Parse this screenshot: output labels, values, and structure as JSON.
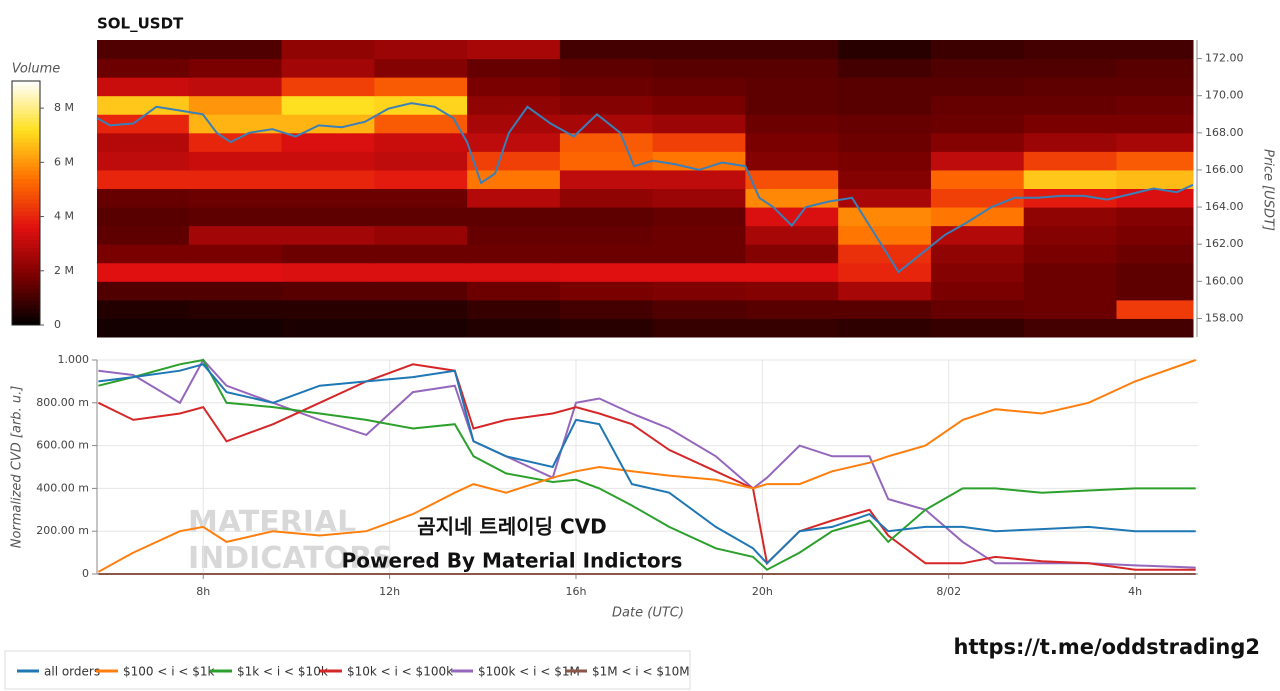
{
  "chart_data": [
    {
      "type": "heatmap",
      "title": "SOL_USDT",
      "y_label": "Price [USDT]",
      "xlim": [
        5.72,
        29.35
      ],
      "ylim": [
        157,
        173
      ],
      "yticks": [
        {
          "value": 158,
          "label": "158.00"
        },
        {
          "value": 160,
          "label": "160.00"
        },
        {
          "value": 162,
          "label": "162.00"
        },
        {
          "value": 164,
          "label": "164.00"
        },
        {
          "value": 166,
          "label": "166.00"
        },
        {
          "value": 168,
          "label": "168.00"
        },
        {
          "value": 170,
          "label": "170.00"
        },
        {
          "value": 172,
          "label": "172.00"
        }
      ],
      "x_bins": [
        5.72,
        7.7,
        9.7,
        11.7,
        13.7,
        15.7,
        17.7,
        19.7,
        21.7,
        23.7,
        25.7,
        27.7,
        29.35
      ],
      "y_bins": [
        157,
        158,
        159,
        160,
        161,
        162,
        163,
        164,
        165,
        166,
        167,
        168,
        169,
        170,
        171,
        172,
        173
      ],
      "z": [
        [
          0.3,
          0.3,
          0.4,
          0.4,
          0.5,
          0.6,
          0.8,
          0.8,
          0.7,
          0.8,
          1.0,
          1.0
        ],
        [
          0.5,
          0.6,
          0.6,
          0.6,
          0.8,
          1.0,
          1.2,
          1.3,
          1.3,
          1.5,
          1.6,
          4.4
        ],
        [
          1.2,
          1.2,
          1.3,
          1.3,
          1.6,
          1.8,
          1.9,
          2.0,
          2.6,
          1.8,
          1.6,
          1.4
        ],
        [
          3.6,
          3.6,
          3.5,
          3.5,
          3.5,
          3.6,
          3.6,
          3.6,
          4.0,
          2.0,
          1.6,
          1.4
        ],
        [
          1.8,
          1.8,
          1.6,
          1.6,
          1.6,
          1.6,
          1.6,
          2.0,
          4.2,
          2.2,
          1.8,
          1.6
        ],
        [
          1.4,
          2.5,
          2.5,
          2.3,
          1.5,
          1.5,
          1.6,
          2.6,
          5.5,
          2.8,
          2.0,
          1.8
        ],
        [
          1.3,
          1.4,
          1.4,
          1.4,
          1.4,
          1.4,
          1.5,
          3.5,
          5.8,
          5.5,
          2.2,
          2.0
        ],
        [
          1.5,
          1.6,
          1.6,
          1.6,
          2.8,
          2.2,
          2.4,
          5.8,
          2.6,
          4.5,
          3.8,
          3.5
        ],
        [
          4.0,
          4.0,
          4.0,
          3.8,
          5.5,
          3.0,
          3.0,
          4.8,
          2.0,
          5.2,
          6.8,
          6.6
        ],
        [
          3.0,
          3.2,
          3.2,
          3.0,
          4.5,
          5.2,
          5.5,
          2.0,
          1.8,
          3.0,
          4.5,
          5.0
        ],
        [
          2.8,
          4.0,
          3.5,
          3.2,
          3.0,
          5.0,
          4.5,
          1.8,
          1.6,
          2.0,
          2.4,
          2.6
        ],
        [
          4.0,
          6.5,
          6.5,
          5.0,
          2.6,
          2.6,
          2.4,
          1.6,
          1.5,
          1.6,
          1.8,
          1.8
        ],
        [
          6.8,
          6.0,
          7.2,
          7.0,
          2.2,
          2.0,
          1.8,
          1.4,
          1.3,
          1.5,
          1.5,
          1.6
        ],
        [
          3.2,
          3.0,
          4.5,
          5.0,
          1.8,
          1.6,
          1.5,
          1.4,
          1.3,
          1.3,
          1.4,
          1.4
        ],
        [
          1.6,
          1.8,
          2.5,
          2.0,
          1.5,
          1.4,
          1.3,
          1.3,
          1.0,
          1.2,
          1.2,
          1.3
        ],
        [
          1.2,
          1.2,
          2.2,
          2.4,
          2.6,
          1.0,
          1.0,
          1.0,
          0.6,
          0.9,
          1.0,
          1.0
        ]
      ],
      "colormap": [
        "#000000",
        "#7a0000",
        "#e01010",
        "#ff7000",
        "#ffe020",
        "#ffffff"
      ],
      "colorbar": {
        "label": "Volume",
        "lim": [
          0,
          9
        ],
        "ticks": [
          0,
          {
            "value": 2,
            "label": "2 M"
          },
          {
            "value": 4,
            "label": "4 M"
          },
          {
            "value": 6,
            "label": "6 M"
          },
          {
            "value": 8,
            "label": "8 M"
          }
        ]
      },
      "price": {
        "color": "#3b7fb8",
        "x": [
          5.72,
          6.0,
          6.5,
          7.0,
          7.5,
          8.0,
          8.3,
          8.6,
          9.0,
          9.5,
          10.0,
          10.5,
          11.0,
          11.5,
          12.0,
          12.5,
          13.0,
          13.4,
          13.7,
          14.0,
          14.3,
          14.6,
          15.0,
          15.5,
          16.0,
          16.5,
          17.0,
          17.3,
          17.7,
          18.2,
          18.7,
          19.2,
          19.7,
          20.0,
          20.3,
          20.7,
          21.0,
          21.5,
          22.0,
          22.5,
          23.0,
          23.5,
          24.0,
          24.5,
          25.0,
          25.5,
          26.0,
          26.5,
          27.0,
          27.5,
          28.0,
          28.5,
          29.0,
          29.35
        ],
        "values": [
          168.8,
          168.4,
          168.5,
          169.4,
          169.2,
          169.0,
          168.0,
          167.5,
          168.0,
          168.2,
          167.8,
          168.4,
          168.3,
          168.6,
          169.3,
          169.6,
          169.4,
          168.8,
          167.5,
          165.3,
          165.8,
          168.0,
          169.4,
          168.5,
          167.8,
          169.0,
          168.0,
          166.2,
          166.5,
          166.3,
          166.0,
          166.4,
          166.2,
          164.5,
          164.0,
          163.0,
          164.0,
          164.3,
          164.5,
          162.5,
          160.5,
          161.5,
          162.5,
          163.2,
          164.0,
          164.5,
          164.5,
          164.6,
          164.6,
          164.4,
          164.7,
          165.0,
          164.8,
          165.2
        ]
      }
    },
    {
      "type": "line",
      "x_label": "Date (UTC)",
      "y_label": "Normalized CVD [arb. u.]",
      "xlim": [
        5.72,
        29.35
      ],
      "xticks": [
        {
          "value": 8,
          "label": "8h"
        },
        {
          "value": 12,
          "label": "12h"
        },
        {
          "value": 16,
          "label": "16h"
        },
        {
          "value": 20,
          "label": "20h"
        },
        {
          "value": 24,
          "label": "8/02"
        },
        {
          "value": 28,
          "label": "4h"
        }
      ],
      "ylim": [
        0,
        1
      ],
      "yticks": [
        0,
        {
          "value": 0.2,
          "label": "200.00 m"
        },
        {
          "value": 0.4,
          "label": "400.00 m"
        },
        {
          "value": 0.6,
          "label": "600.00 m"
        },
        {
          "value": 0.8,
          "label": "800.00 m"
        },
        {
          "value": 1,
          "label": "1.000"
        }
      ],
      "grid": true,
      "x": [
        5.75,
        6.5,
        7.5,
        8,
        8.5,
        9.5,
        10.5,
        11.5,
        12.5,
        13.4,
        13.8,
        14.5,
        15.5,
        16,
        16.5,
        17.2,
        18,
        19,
        19.8,
        20.1,
        20.8,
        21.5,
        22.3,
        22.7,
        23.5,
        24.3,
        25,
        26,
        27,
        28,
        29.3
      ],
      "series": [
        {
          "name": "all orders",
          "color": "#1f77b4",
          "values": [
            0.9,
            0.92,
            0.95,
            0.98,
            0.85,
            0.8,
            0.88,
            0.9,
            0.92,
            0.95,
            0.62,
            0.55,
            0.5,
            0.72,
            0.7,
            0.42,
            0.38,
            0.22,
            0.12,
            0.05,
            0.2,
            0.22,
            0.28,
            0.2,
            0.22,
            0.22,
            0.2,
            0.21,
            0.22,
            0.2,
            0.2
          ]
        },
        {
          "name": "$100 < i < $1k",
          "color": "#ff7f0e",
          "values": [
            0.01,
            0.1,
            0.2,
            0.22,
            0.15,
            0.2,
            0.18,
            0.2,
            0.28,
            0.38,
            0.42,
            0.38,
            0.45,
            0.48,
            0.5,
            0.48,
            0.46,
            0.44,
            0.4,
            0.42,
            0.42,
            0.48,
            0.52,
            0.55,
            0.6,
            0.72,
            0.77,
            0.75,
            0.8,
            0.9,
            1.0
          ]
        },
        {
          "name": "$1k < i < $10k",
          "color": "#2ca02c",
          "values": [
            0.88,
            0.92,
            0.98,
            1.0,
            0.8,
            0.78,
            0.75,
            0.72,
            0.68,
            0.7,
            0.55,
            0.47,
            0.43,
            0.44,
            0.4,
            0.32,
            0.22,
            0.12,
            0.08,
            0.02,
            0.1,
            0.2,
            0.25,
            0.15,
            0.3,
            0.4,
            0.4,
            0.38,
            0.39,
            0.4,
            0.4
          ]
        },
        {
          "name": "$10k < i < $100k",
          "color": "#d62728",
          "values": [
            0.8,
            0.72,
            0.75,
            0.78,
            0.62,
            0.7,
            0.8,
            0.9,
            0.98,
            0.95,
            0.68,
            0.72,
            0.75,
            0.78,
            0.75,
            0.7,
            0.58,
            0.48,
            0.4,
            0.05,
            0.2,
            0.25,
            0.3,
            0.18,
            0.05,
            0.05,
            0.08,
            0.06,
            0.05,
            0.02,
            0.02
          ]
        },
        {
          "name": "$100k < i < $1M",
          "color": "#9467bd",
          "values": [
            0.95,
            0.93,
            0.8,
            1.0,
            0.88,
            0.8,
            0.72,
            0.65,
            0.85,
            0.88,
            0.62,
            0.55,
            0.45,
            0.8,
            0.82,
            0.75,
            0.68,
            0.55,
            0.4,
            0.45,
            0.6,
            0.55,
            0.55,
            0.35,
            0.3,
            0.15,
            0.05,
            0.05,
            0.05,
            0.04,
            0.03
          ]
        },
        {
          "name": "$1M < i < $10M",
          "color": "#8c564b",
          "values": [
            0,
            0,
            0,
            0,
            0,
            0,
            0,
            0,
            0,
            0,
            0,
            0,
            0,
            0,
            0,
            0,
            0,
            0,
            0,
            0,
            0,
            0,
            0,
            0,
            0,
            0,
            0,
            0,
            0,
            0,
            0
          ]
        }
      ],
      "watermark": [
        "MATERIAL",
        "INDICATORS"
      ],
      "overlay_title": "곰지네 트레이딩 CVD",
      "overlay_subtitle": "Powered By Material Indictors"
    }
  ],
  "footer_link": "https://t.me/oddstrading2"
}
